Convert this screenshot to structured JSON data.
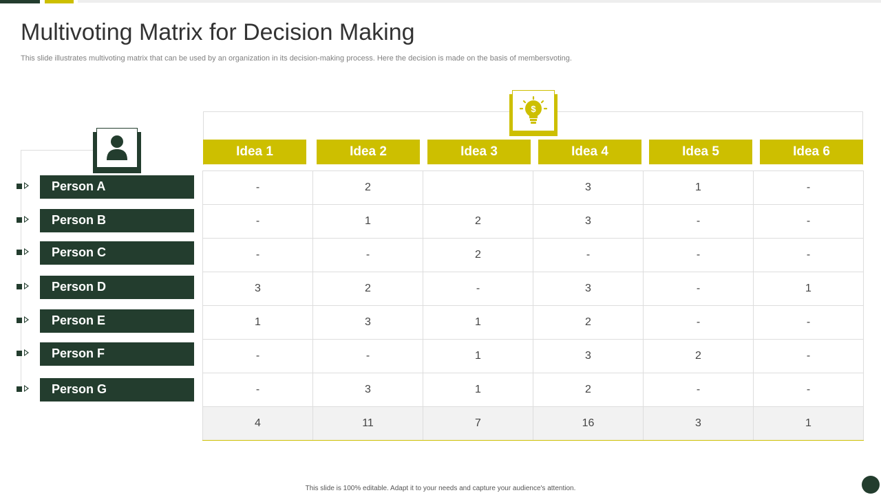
{
  "slide": {
    "title": "Multivoting Matrix for Decision Making",
    "subtitle": "This slide illustrates multivoting matrix that can be used by an organization in its decision-making process. Here the decision is made on the basis of membersvoting.",
    "footer": "This slide is 100% editable.  Adapt it to your needs and capture your audience's attention."
  },
  "colors": {
    "dark_green": "#233d2e",
    "accent_yellow": "#cdbf00"
  },
  "icons": {
    "person": "user-icon",
    "idea": "lightbulb-dollar-icon"
  },
  "ideas": [
    "Idea 1",
    "Idea 2",
    "Idea 3",
    "Idea 4",
    "Idea 5",
    "Idea 6"
  ],
  "persons": [
    "Person A",
    "Person B",
    "Person C",
    "Person D",
    "Person E",
    "Person F",
    "Person G"
  ],
  "votes": [
    [
      "-",
      "2",
      "",
      "3",
      "1",
      "-"
    ],
    [
      "-",
      "1",
      "2",
      "3",
      "-",
      "-"
    ],
    [
      "-",
      "-",
      "2",
      "-",
      "-",
      "-"
    ],
    [
      "3",
      "2",
      "-",
      "3",
      "-",
      "1"
    ],
    [
      "1",
      "3",
      "1",
      "2",
      "-",
      "-"
    ],
    [
      "-",
      "-",
      "1",
      "3",
      "2",
      "-"
    ],
    [
      "-",
      "3",
      "1",
      "2",
      "-",
      "-"
    ]
  ],
  "totals": [
    "4",
    "11",
    "7",
    "16",
    "3",
    "1"
  ]
}
